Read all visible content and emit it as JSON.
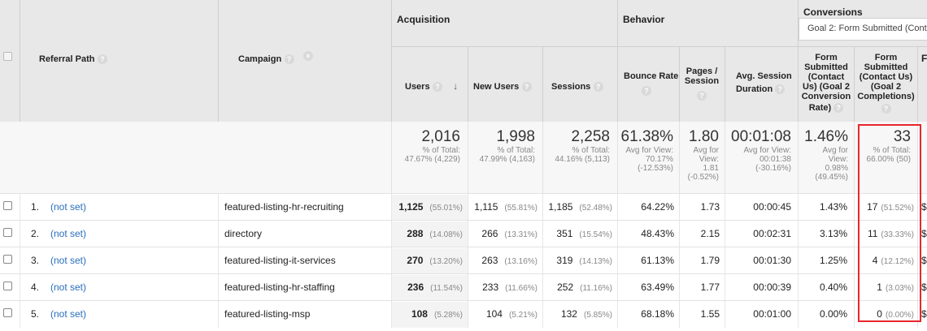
{
  "groups": {
    "acquisition": "Acquisition",
    "behavior": "Behavior",
    "conversions": "Conversions"
  },
  "goal_select": {
    "value": "Goal 2: Form Submitted (Contac"
  },
  "columns": {
    "referral_path": "Referral Path",
    "campaign": "Campaign",
    "users": "Users",
    "new_users": "New Users",
    "sessions": "Sessions",
    "bounce_rate": "Bounce Rate",
    "pages_session": [
      "Pages /",
      "Session"
    ],
    "avg_session": [
      "Avg. Session",
      "Duration"
    ],
    "conv_rate": [
      "Form",
      "Submitted",
      "(Contact",
      "Us) (Goal 2",
      "Conversion",
      "Rate)"
    ],
    "completions": [
      "Form",
      "Submitted",
      "(Contact Us)",
      "(Goal 2",
      "Completions)"
    ],
    "next_col_initial": "F"
  },
  "totals": {
    "users": {
      "value": "2,016",
      "sub": [
        "% of Total:",
        "47.67% (4,229)"
      ]
    },
    "new_users": {
      "value": "1,998",
      "sub": [
        "% of Total:",
        "47.99% (4,163)"
      ]
    },
    "sessions": {
      "value": "2,258",
      "sub": [
        "% of Total:",
        "44.16% (5,113)"
      ]
    },
    "bounce_rate": {
      "value": "61.38%",
      "sub": [
        "Avg for View:",
        "70.17%",
        "(-12.53%)"
      ]
    },
    "pages_session": {
      "value": "1.80",
      "sub": [
        "Avg for",
        "View:",
        "1.81",
        "(-0.52%)"
      ]
    },
    "avg_session": {
      "value": "00:01:08",
      "sub": [
        "Avg for View:",
        "00:01:38",
        "(-30.16%)"
      ]
    },
    "conv_rate": {
      "value": "1.46%",
      "sub": [
        "Avg for",
        "View:",
        "0.98%",
        "(49.45%)"
      ]
    },
    "completions": {
      "value": "33",
      "sub": [
        "% of Total:",
        "66.00% (50)"
      ]
    }
  },
  "rows": [
    {
      "num": "1.",
      "path": "(not set)",
      "campaign": "featured-listing-hr-recruiting",
      "users": "1,125",
      "users_pct": "(55.01%)",
      "new_users": "1,115",
      "new_users_pct": "(55.81%)",
      "sessions": "1,185",
      "sessions_pct": "(52.48%)",
      "bounce": "64.22%",
      "pages": "1.73",
      "duration": "00:00:45",
      "conv_rate": "1.43%",
      "completions": "17",
      "completions_pct": "(51.52%)",
      "next": "$"
    },
    {
      "num": "2.",
      "path": "(not set)",
      "campaign": "directory",
      "users": "288",
      "users_pct": "(14.08%)",
      "new_users": "266",
      "new_users_pct": "(13.31%)",
      "sessions": "351",
      "sessions_pct": "(15.54%)",
      "bounce": "48.43%",
      "pages": "2.15",
      "duration": "00:02:31",
      "conv_rate": "3.13%",
      "completions": "11",
      "completions_pct": "(33.33%)",
      "next": "$"
    },
    {
      "num": "3.",
      "path": "(not set)",
      "campaign": "featured-listing-it-services",
      "users": "270",
      "users_pct": "(13.20%)",
      "new_users": "263",
      "new_users_pct": "(13.16%)",
      "sessions": "319",
      "sessions_pct": "(14.13%)",
      "bounce": "61.13%",
      "pages": "1.79",
      "duration": "00:01:30",
      "conv_rate": "1.25%",
      "completions": "4",
      "completions_pct": "(12.12%)",
      "next": "$"
    },
    {
      "num": "4.",
      "path": "(not set)",
      "campaign": "featured-listing-hr-staffing",
      "users": "236",
      "users_pct": "(11.54%)",
      "new_users": "233",
      "new_users_pct": "(11.66%)",
      "sessions": "252",
      "sessions_pct": "(11.16%)",
      "bounce": "63.49%",
      "pages": "1.77",
      "duration": "00:00:39",
      "conv_rate": "0.40%",
      "completions": "1",
      "completions_pct": "(3.03%)",
      "next": "$"
    },
    {
      "num": "5.",
      "path": "(not set)",
      "campaign": "featured-listing-msp",
      "users": "108",
      "users_pct": "(5.28%)",
      "new_users": "104",
      "new_users_pct": "(5.21%)",
      "sessions": "132",
      "sessions_pct": "(5.85%)",
      "bounce": "68.18%",
      "pages": "1.55",
      "duration": "00:01:00",
      "conv_rate": "0.00%",
      "completions": "0",
      "completions_pct": "(0.00%)",
      "next": "$"
    }
  ],
  "colors": {
    "header_bg": "#e8e8e8",
    "link": "#2a6ebb",
    "highlight": "#e8262b"
  }
}
